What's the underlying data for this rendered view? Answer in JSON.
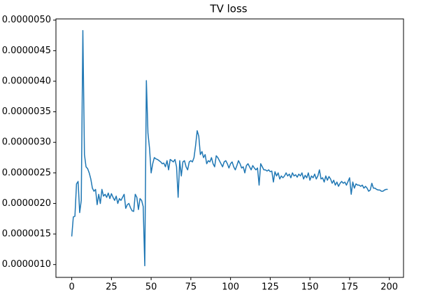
{
  "chart_data": {
    "type": "line",
    "title": "TV loss",
    "x": [
      0,
      1,
      2,
      3,
      4,
      5,
      6,
      7,
      8,
      9,
      10,
      11,
      12,
      13,
      14,
      15,
      16,
      17,
      18,
      19,
      20,
      21,
      22,
      23,
      24,
      25,
      26,
      27,
      28,
      29,
      30,
      31,
      32,
      33,
      34,
      35,
      36,
      37,
      38,
      39,
      40,
      41,
      42,
      43,
      44,
      45,
      46,
      47,
      48,
      49,
      50,
      51,
      52,
      53,
      54,
      55,
      56,
      57,
      58,
      59,
      60,
      61,
      62,
      63,
      64,
      65,
      66,
      67,
      68,
      69,
      70,
      71,
      72,
      73,
      74,
      75,
      76,
      77,
      78,
      79,
      80,
      81,
      82,
      83,
      84,
      85,
      86,
      87,
      88,
      89,
      90,
      91,
      92,
      93,
      94,
      95,
      96,
      97,
      98,
      99,
      100,
      101,
      102,
      103,
      104,
      105,
      106,
      107,
      108,
      109,
      110,
      111,
      112,
      113,
      114,
      115,
      116,
      117,
      118,
      119,
      120,
      121,
      122,
      123,
      124,
      125,
      126,
      127,
      128,
      129,
      130,
      131,
      132,
      133,
      134,
      135,
      136,
      137,
      138,
      139,
      140,
      141,
      142,
      143,
      144,
      145,
      146,
      147,
      148,
      149,
      150,
      151,
      152,
      153,
      154,
      155,
      156,
      157,
      158,
      159,
      160,
      161,
      162,
      163,
      164,
      165,
      166,
      167,
      168,
      169,
      170,
      171,
      172,
      173,
      174,
      175,
      176,
      177,
      178,
      179,
      180,
      181,
      182,
      183,
      184,
      185,
      186,
      187,
      188,
      189,
      190,
      191,
      192,
      193,
      194,
      195,
      196,
      197,
      198,
      199
    ],
    "series": [
      {
        "color": "#1f77b4",
        "values": [
          1.46e-06,
          1.78e-06,
          1.79e-06,
          2.32e-06,
          2.36e-06,
          1.85e-06,
          2.05e-06,
          4.83e-06,
          2.8e-06,
          2.6e-06,
          2.57e-06,
          2.5e-06,
          2.4e-06,
          2.25e-06,
          2.2e-06,
          2.23e-06,
          1.98e-06,
          2.15e-06,
          2e-06,
          2.23e-06,
          2.12e-06,
          2.15e-06,
          2.1e-06,
          2.17e-06,
          2.08e-06,
          2.16e-06,
          2.1e-06,
          2.05e-06,
          2.12e-06,
          2e-06,
          2.08e-06,
          2.05e-06,
          2.1e-06,
          2.15e-06,
          1.92e-06,
          1.98e-06,
          2e-06,
          1.93e-06,
          1.88e-06,
          1.87e-06,
          2.15e-06,
          2.1e-06,
          1.9e-06,
          2.08e-06,
          2.05e-06,
          1.95e-06,
          9.8e-07,
          4.01e-06,
          3.15e-06,
          2.9e-06,
          2.5e-06,
          2.65e-06,
          2.75e-06,
          2.73e-06,
          2.72e-06,
          2.7e-06,
          2.68e-06,
          2.65e-06,
          2.66e-06,
          2.6e-06,
          2.7e-06,
          2.55e-06,
          2.72e-06,
          2.7e-06,
          2.68e-06,
          2.72e-06,
          2.6e-06,
          2.1e-06,
          2.7e-06,
          2.45e-06,
          2.68e-06,
          2.7e-06,
          2.6e-06,
          2.55e-06,
          2.68e-06,
          2.7e-06,
          2.68e-06,
          2.75e-06,
          2.95e-06,
          3.19e-06,
          3.1e-06,
          2.8e-06,
          2.85e-06,
          2.75e-06,
          2.8e-06,
          2.65e-06,
          2.7e-06,
          2.68e-06,
          2.75e-06,
          2.65e-06,
          2.6e-06,
          2.78e-06,
          2.75e-06,
          2.7e-06,
          2.65e-06,
          2.6e-06,
          2.68e-06,
          2.7e-06,
          2.65e-06,
          2.58e-06,
          2.65e-06,
          2.68e-06,
          2.6e-06,
          2.55e-06,
          2.62e-06,
          2.7e-06,
          2.65e-06,
          2.58e-06,
          2.6e-06,
          2.5e-06,
          2.62e-06,
          2.65e-06,
          2.6e-06,
          2.55e-06,
          2.62e-06,
          2.58e-06,
          2.55e-06,
          2.58e-06,
          2.3e-06,
          2.65e-06,
          2.6e-06,
          2.55e-06,
          2.55e-06,
          2.53e-06,
          2.55e-06,
          2.52e-06,
          2.53e-06,
          2.35e-06,
          2.52e-06,
          2.45e-06,
          2.5e-06,
          2.4e-06,
          2.45e-06,
          2.42e-06,
          2.45e-06,
          2.5e-06,
          2.45e-06,
          2.48e-06,
          2.42e-06,
          2.5e-06,
          2.45e-06,
          2.47e-06,
          2.43e-06,
          2.48e-06,
          2.45e-06,
          2.5e-06,
          2.4e-06,
          2.46e-06,
          2.42e-06,
          2.5e-06,
          2.38e-06,
          2.45e-06,
          2.42e-06,
          2.48e-06,
          2.4e-06,
          2.45e-06,
          2.55e-06,
          2.4e-06,
          2.42e-06,
          2.35e-06,
          2.45e-06,
          2.38e-06,
          2.44e-06,
          2.4e-06,
          2.33e-06,
          2.38e-06,
          2.3e-06,
          2.35e-06,
          2.28e-06,
          2.33e-06,
          2.36e-06,
          2.33e-06,
          2.35e-06,
          2.3e-06,
          2.36e-06,
          2.42e-06,
          2.15e-06,
          2.35e-06,
          2.25e-06,
          2.32e-06,
          2.3e-06,
          2.3e-06,
          2.28e-06,
          2.3e-06,
          2.25e-06,
          2.28e-06,
          2.25e-06,
          2.2e-06,
          2.22e-06,
          2.33e-06,
          2.25e-06,
          2.25e-06,
          2.23e-06,
          2.22e-06,
          2.22e-06,
          2.2e-06,
          2.2e-06,
          2.22e-06,
          2.23e-06,
          2.23e-06
        ]
      }
    ],
    "xlim": [
      -9.95,
      208.95
    ],
    "xticks": [
      0,
      25,
      50,
      75,
      100,
      125,
      150,
      175,
      200
    ],
    "ylim": [
      7.9e-07,
      5.02e-06
    ],
    "yticks": [
      {
        "value": 1e-06,
        "label": "0.0000010"
      },
      {
        "value": 1.5e-06,
        "label": "0.0000015"
      },
      {
        "value": 2e-06,
        "label": "0.0000020"
      },
      {
        "value": 2.5e-06,
        "label": "0.0000025"
      },
      {
        "value": 3e-06,
        "label": "0.0000030"
      },
      {
        "value": 3.5e-06,
        "label": "0.0000035"
      },
      {
        "value": 4e-06,
        "label": "0.0000040"
      },
      {
        "value": 4.5e-06,
        "label": "0.0000045"
      },
      {
        "value": 5e-06,
        "label": "0.0000050"
      }
    ]
  }
}
